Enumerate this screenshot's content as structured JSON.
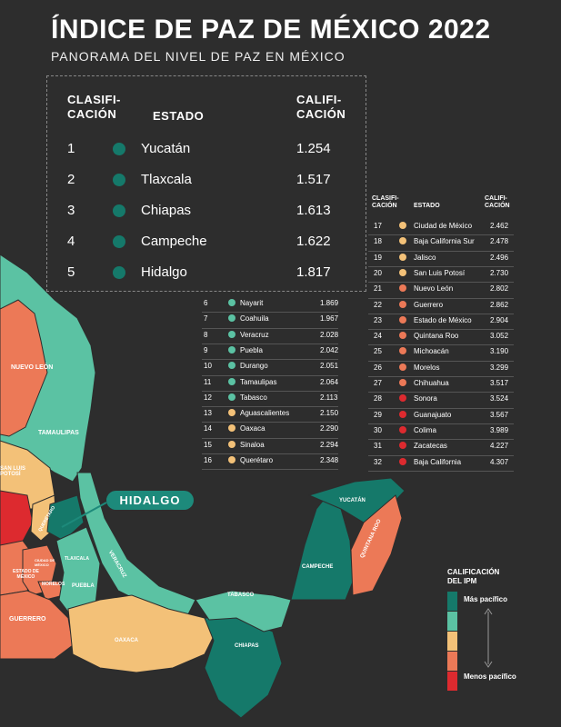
{
  "title": "ÍNDICE DE PAZ DE MÉXICO 2022",
  "subtitle": "PANORAMA DEL NIVEL DE PAZ EN MÉXICO",
  "colors": {
    "background": "#2d2d2d",
    "most_peaceful": "#15796a",
    "peaceful": "#5bc2a3",
    "middle": "#f3c178",
    "less_peaceful": "#ec7957",
    "least_peaceful": "#dd2a2f"
  },
  "headers": {
    "rank": "CLASIFI-\nCACIÓN",
    "state": "ESTADO",
    "score": "CALIFI-\nCACIÓN"
  },
  "top5": [
    {
      "rank": "1",
      "state": "Yucatán",
      "score": "1.254",
      "level": "most_peaceful"
    },
    {
      "rank": "2",
      "state": "Tlaxcala",
      "score": "1.517",
      "level": "most_peaceful"
    },
    {
      "rank": "3",
      "state": "Chiapas",
      "score": "1.613",
      "level": "most_peaceful"
    },
    {
      "rank": "4",
      "state": "Campeche",
      "score": "1.622",
      "level": "most_peaceful"
    },
    {
      "rank": "5",
      "state": "Hidalgo",
      "score": "1.817",
      "level": "most_peaceful"
    }
  ],
  "middle_list": [
    {
      "rank": "6",
      "state": "Nayarit",
      "score": "1.869",
      "level": "peaceful"
    },
    {
      "rank": "7",
      "state": "Coahuila",
      "score": "1.967",
      "level": "peaceful"
    },
    {
      "rank": "8",
      "state": "Veracruz",
      "score": "2.028",
      "level": "peaceful"
    },
    {
      "rank": "9",
      "state": "Puebla",
      "score": "2.042",
      "level": "peaceful"
    },
    {
      "rank": "10",
      "state": "Durango",
      "score": "2.051",
      "level": "peaceful"
    },
    {
      "rank": "11",
      "state": "Tamaulipas",
      "score": "2.064",
      "level": "peaceful"
    },
    {
      "rank": "12",
      "state": "Tabasco",
      "score": "2.113",
      "level": "peaceful"
    },
    {
      "rank": "13",
      "state": "Aguascalientes",
      "score": "2.150",
      "level": "middle"
    },
    {
      "rank": "14",
      "state": "Oaxaca",
      "score": "2.290",
      "level": "middle"
    },
    {
      "rank": "15",
      "state": "Sinaloa",
      "score": "2.294",
      "level": "middle"
    },
    {
      "rank": "16",
      "state": "Querétaro",
      "score": "2.348",
      "level": "middle"
    }
  ],
  "right_list": [
    {
      "rank": "17",
      "state": "Ciudad de México",
      "score": "2.462",
      "level": "middle"
    },
    {
      "rank": "18",
      "state": "Baja California Sur",
      "score": "2.478",
      "level": "middle"
    },
    {
      "rank": "19",
      "state": "Jalisco",
      "score": "2.496",
      "level": "middle"
    },
    {
      "rank": "20",
      "state": "San Luis Potosí",
      "score": "2.730",
      "level": "middle"
    },
    {
      "rank": "21",
      "state": "Nuevo León",
      "score": "2.802",
      "level": "less_peaceful"
    },
    {
      "rank": "22",
      "state": "Guerrero",
      "score": "2.862",
      "level": "less_peaceful"
    },
    {
      "rank": "23",
      "state": "Estado de México",
      "score": "2.904",
      "level": "less_peaceful"
    },
    {
      "rank": "24",
      "state": "Quintana Roo",
      "score": "3.052",
      "level": "less_peaceful"
    },
    {
      "rank": "25",
      "state": "Michoacán",
      "score": "3.190",
      "level": "less_peaceful"
    },
    {
      "rank": "26",
      "state": "Morelos",
      "score": "3.299",
      "level": "less_peaceful"
    },
    {
      "rank": "27",
      "state": "Chihuahua",
      "score": "3.517",
      "level": "less_peaceful"
    },
    {
      "rank": "28",
      "state": "Sonora",
      "score": "3.524",
      "level": "least_peaceful"
    },
    {
      "rank": "29",
      "state": "Guanajuato",
      "score": "3.567",
      "level": "least_peaceful"
    },
    {
      "rank": "30",
      "state": "Colima",
      "score": "3.989",
      "level": "least_peaceful"
    },
    {
      "rank": "31",
      "state": "Zacatecas",
      "score": "4.227",
      "level": "least_peaceful"
    },
    {
      "rank": "32",
      "state": "Baja California",
      "score": "4.307",
      "level": "least_peaceful"
    }
  ],
  "map_labels": {
    "nuevo_leon": "NUEVO LEÓN",
    "tamaulipas": "TAMAULIPAS",
    "san_luis": "SAN LUIS\nPOTOSÍ",
    "queretaro": "QUERÉTARO",
    "hidalgo_callout": "HIDALGO",
    "tlaxcala": "TLAXCALA",
    "veracruz": "VERACRUZ",
    "estado_mexico": "ESTADO DE\nMÉXICO",
    "ciudad_mexico": "CIUDAD DE\nMÉXICO",
    "morelos": "MORELOS",
    "puebla": "PUEBLA",
    "guerrero": "GUERRERO",
    "oaxaca": "OAXACA",
    "tabasco": "TABASCO",
    "chiapas": "CHIAPAS",
    "campeche": "CAMPECHE",
    "yucatan": "YUCATÁN",
    "quintana_roo": "QUINTANA ROO"
  },
  "legend": {
    "title": "CALIFICACIÓN\nDEL IPM",
    "top": "Más pacífico",
    "bottom": "Menos pacífico",
    "levels": [
      "most_peaceful",
      "peaceful",
      "middle",
      "less_peaceful",
      "least_peaceful"
    ]
  }
}
